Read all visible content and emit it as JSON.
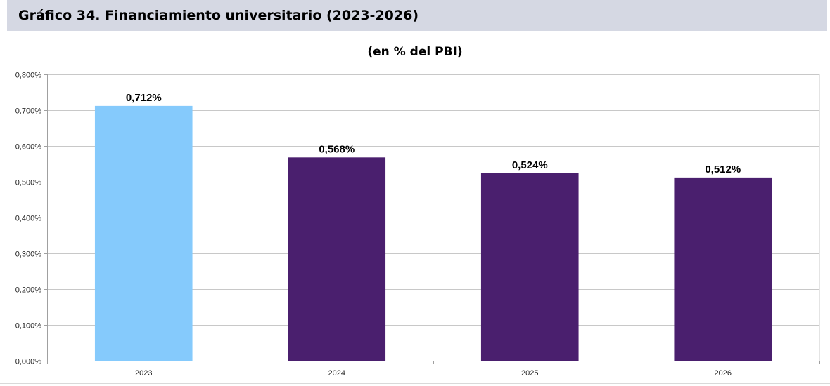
{
  "header": {
    "title": "Gráfico 34. Financiamiento universitario (2023-2026)"
  },
  "chart_data": {
    "type": "bar",
    "title": "",
    "subtitle": "(en % del PBI)",
    "xlabel": "",
    "ylabel": "",
    "ylim": [
      0,
      0.8
    ],
    "yticks": [
      0,
      0.1,
      0.2,
      0.3,
      0.4,
      0.5,
      0.6,
      0.7,
      0.8
    ],
    "ytick_labels": [
      "0,000%",
      "0,100%",
      "0,200%",
      "0,300%",
      "0,400%",
      "0,500%",
      "0,600%",
      "0,700%",
      "0,800%"
    ],
    "categories": [
      "2023",
      "2024",
      "2025",
      "2026"
    ],
    "values": [
      0.712,
      0.568,
      0.524,
      0.512
    ],
    "data_labels": [
      "0,712%",
      "0,568%",
      "0,524%",
      "0,512%"
    ],
    "bar_colors": [
      "#85cafc",
      "#4a1f6e",
      "#4a1f6e",
      "#4a1f6e"
    ],
    "grid": true,
    "legend": "none"
  }
}
